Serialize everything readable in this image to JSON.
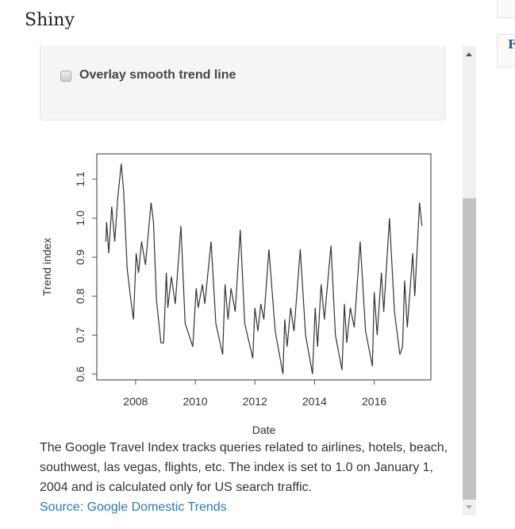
{
  "header": {
    "title": "Shiny"
  },
  "controls": {
    "trend_checkbox_label": "Overlay smooth trend line",
    "trend_checked": false
  },
  "description": {
    "text": "The Google Travel Index tracks queries related to airlines, hotels, beach, southwest, las vegas, flights, etc. The index is set to 1.0 on January 1, 2004 and is calculated only for US search traffic.",
    "source_link": "Source: Google Domestic Trends"
  },
  "right_panel": {
    "letter": "F"
  },
  "chart_data": {
    "type": "line",
    "xlabel": "Date",
    "ylabel": "Trend index",
    "xlim": [
      2006.7,
      2017.9
    ],
    "ylim": [
      0.585,
      1.165
    ],
    "xticks": [
      2008,
      2010,
      2012,
      2014,
      2016
    ],
    "yticks": [
      "0.6",
      "0.7",
      "0.8",
      "0.9",
      "1.0",
      "1.1"
    ],
    "grid": false,
    "line_color": "#333333",
    "x": [
      2007.0,
      2007.03,
      2007.1,
      2007.2,
      2007.3,
      2007.4,
      2007.52,
      2007.6,
      2007.72,
      2007.84,
      2007.93,
      2008.02,
      2008.1,
      2008.2,
      2008.33,
      2008.52,
      2008.6,
      2008.7,
      2008.85,
      2008.94,
      2009.03,
      2009.08,
      2009.2,
      2009.33,
      2009.52,
      2009.66,
      2009.92,
      2010.03,
      2010.1,
      2010.24,
      2010.32,
      2010.53,
      2010.69,
      2010.92,
      2011.0,
      2011.1,
      2011.2,
      2011.34,
      2011.51,
      2011.66,
      2011.93,
      2012.0,
      2012.1,
      2012.2,
      2012.3,
      2012.47,
      2012.68,
      2012.94,
      2013.0,
      2013.08,
      2013.2,
      2013.31,
      2013.52,
      2013.7,
      2013.93,
      2014.02,
      2014.1,
      2014.22,
      2014.33,
      2014.55,
      2014.7,
      2014.92,
      2015.0,
      2015.08,
      2015.2,
      2015.33,
      2015.53,
      2015.71,
      2015.94,
      2016.0,
      2016.1,
      2016.24,
      2016.32,
      2016.51,
      2016.68,
      2016.86,
      2016.95,
      2017.02,
      2017.11,
      2017.29,
      2017.36,
      2017.52,
      2017.6
    ],
    "y": [
      0.94,
      0.99,
      0.91,
      1.03,
      0.94,
      1.05,
      1.14,
      1.07,
      0.87,
      0.79,
      0.74,
      0.91,
      0.86,
      0.94,
      0.88,
      1.04,
      0.99,
      0.79,
      0.68,
      0.68,
      0.86,
      0.77,
      0.85,
      0.78,
      0.98,
      0.73,
      0.67,
      0.82,
      0.77,
      0.83,
      0.78,
      0.94,
      0.73,
      0.65,
      0.83,
      0.74,
      0.82,
      0.76,
      0.97,
      0.73,
      0.64,
      0.77,
      0.71,
      0.78,
      0.74,
      0.92,
      0.71,
      0.6,
      0.74,
      0.67,
      0.77,
      0.71,
      0.92,
      0.7,
      0.6,
      0.77,
      0.67,
      0.83,
      0.74,
      0.93,
      0.7,
      0.61,
      0.78,
      0.68,
      0.77,
      0.72,
      0.94,
      0.71,
      0.62,
      0.81,
      0.7,
      0.86,
      0.76,
      1.0,
      0.76,
      0.65,
      0.67,
      0.84,
      0.72,
      0.91,
      0.8,
      1.04,
      0.98
    ]
  }
}
